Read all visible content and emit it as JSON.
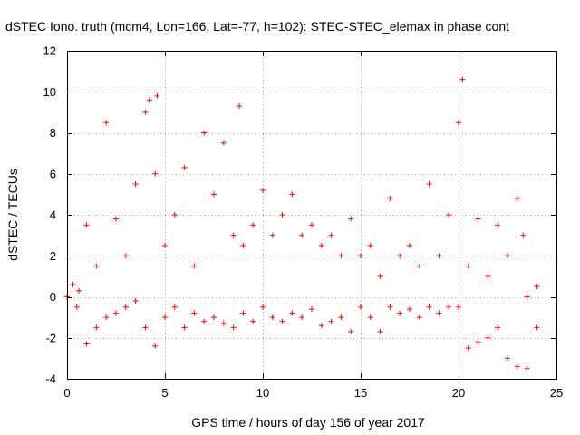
{
  "chart_data": {
    "type": "scatter",
    "title": "dSTEC Iono. truth (mcm4, Lon=166, Lat=-77, h=102): STEC-STEC_elemax in phase cont",
    "xlabel": "GPS time / hours of day 156 of year 2017",
    "ylabel": "dSTEC  / TECUs",
    "xlim": [
      0,
      25
    ],
    "ylim": [
      -4,
      12
    ],
    "xticks": [
      0,
      5,
      10,
      15,
      20,
      25
    ],
    "yticks": [
      -4,
      -2,
      0,
      2,
      4,
      6,
      8,
      10,
      12
    ],
    "grid": true,
    "marker": "+",
    "color": "#ff0000",
    "series": [
      {
        "x": [
          0.0,
          0.3,
          0.6,
          1.0,
          1.5,
          2.0,
          2.5,
          3.0,
          3.5,
          4.0,
          4.2,
          4.5,
          4.6,
          5.0,
          5.5,
          6.0,
          6.5,
          7.0,
          7.5,
          8.0,
          8.5,
          8.8,
          9.0,
          9.5,
          10.0,
          10.5,
          11.0,
          11.5,
          12.0,
          12.5,
          13.0,
          13.5,
          14.0,
          14.5,
          15.0,
          15.5,
          16.0,
          16.5,
          17.0,
          17.5,
          18.0,
          18.5,
          19.0,
          19.5,
          20.0,
          20.2,
          20.5,
          21.0,
          21.5,
          22.0,
          22.5,
          23.0,
          23.3,
          23.5,
          24.0
        ],
        "y": [
          0.0,
          0.6,
          0.3,
          3.5,
          1.5,
          8.5,
          3.8,
          2.0,
          5.5,
          9.0,
          9.6,
          6.0,
          9.8,
          2.5,
          4.0,
          6.3,
          1.5,
          8.0,
          5.0,
          7.5,
          3.0,
          9.3,
          2.5,
          3.5,
          5.2,
          3.0,
          4.0,
          5.0,
          3.0,
          3.5,
          2.5,
          3.0,
          2.0,
          3.8,
          2.0,
          2.5,
          1.0,
          4.8,
          2.0,
          2.5,
          1.5,
          5.5,
          2.0,
          4.0,
          8.5,
          10.6,
          1.5,
          3.8,
          1.0,
          3.5,
          2.0,
          4.8,
          3.0,
          0.0,
          0.5
        ]
      },
      {
        "x": [
          0.5,
          1.0,
          1.5,
          2.0,
          2.5,
          3.0,
          3.5,
          4.0,
          4.5,
          5.0,
          5.5,
          6.0,
          6.5,
          7.0,
          7.5,
          8.0,
          8.5,
          9.0,
          9.5,
          10.0,
          10.5,
          11.0,
          11.5,
          12.0,
          12.5,
          13.0,
          13.5,
          14.0,
          14.5,
          15.0,
          15.5,
          16.0,
          16.5,
          17.0,
          17.5,
          18.0,
          18.5,
          19.0,
          19.5,
          20.0,
          20.5,
          21.0,
          21.5,
          22.0,
          22.5,
          23.0,
          23.5,
          24.0
        ],
        "y": [
          -0.5,
          -2.3,
          -1.5,
          -1.0,
          -0.8,
          -0.5,
          -0.2,
          -1.5,
          -2.4,
          -1.0,
          -0.5,
          -1.5,
          -0.8,
          -1.2,
          -1.0,
          -1.3,
          -1.5,
          -0.8,
          -1.2,
          -0.5,
          -1.0,
          -1.2,
          -0.8,
          -1.0,
          -0.6,
          -1.4,
          -1.2,
          -1.0,
          -1.7,
          -0.5,
          -1.0,
          -1.7,
          -0.5,
          -0.8,
          -0.6,
          -1.0,
          -0.5,
          -0.8,
          -0.5,
          -0.5,
          -2.5,
          -2.2,
          -2.0,
          -1.5,
          -3.0,
          -3.4,
          -3.5,
          -1.5
        ]
      }
    ]
  }
}
